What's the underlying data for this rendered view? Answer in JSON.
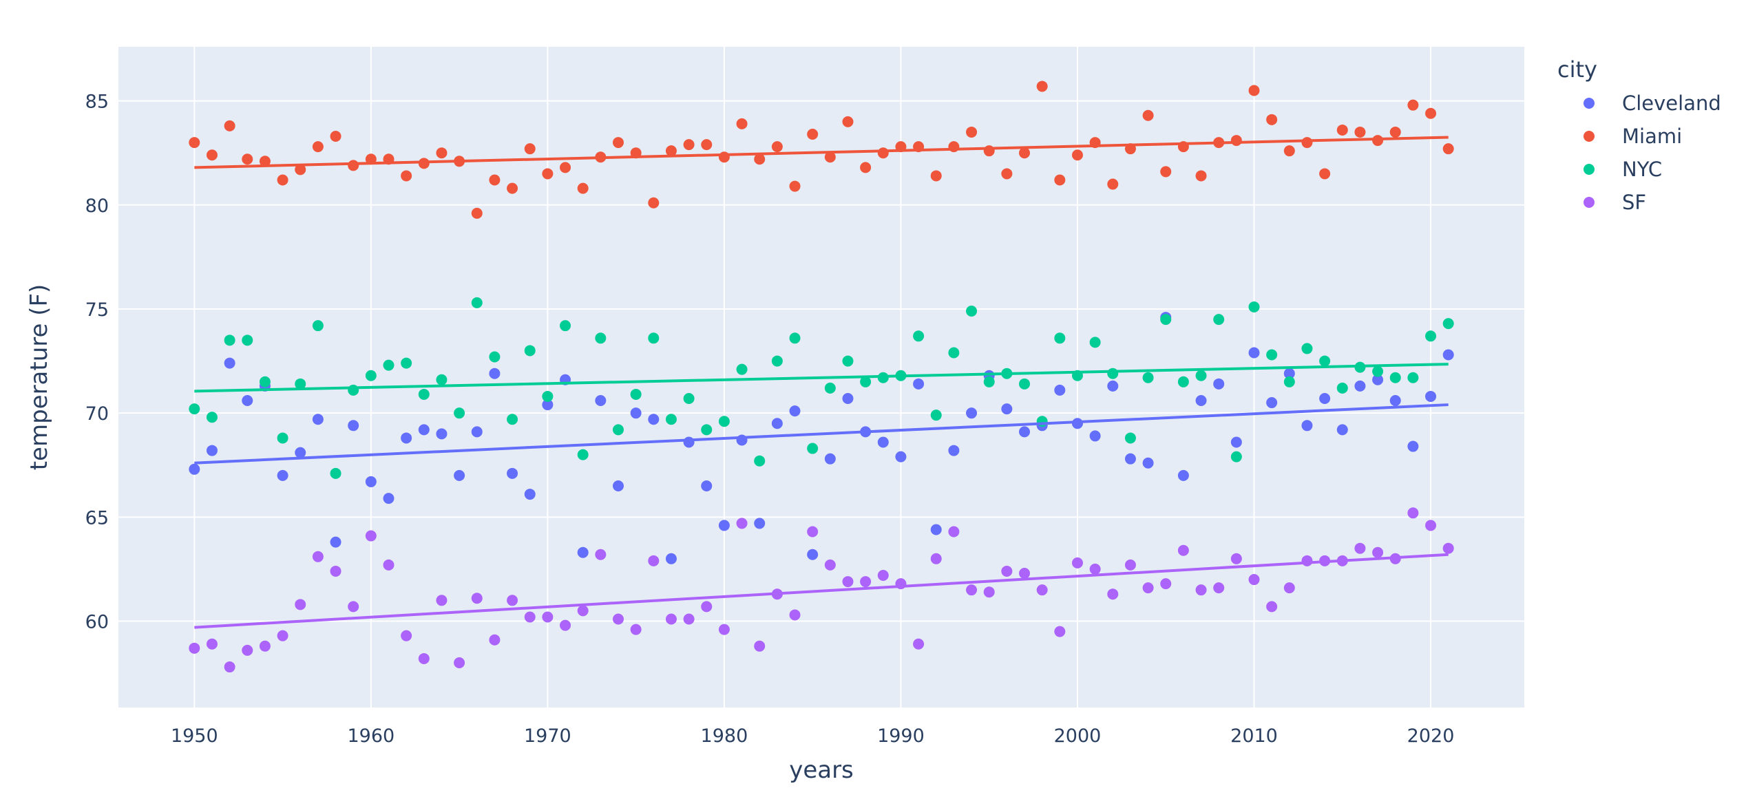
{
  "chart_data": {
    "type": "scatter",
    "xlabel": "years",
    "ylabel": "temperature (F)",
    "xlim": [
      1945.7,
      2025.3
    ],
    "ylim": [
      55.85,
      87.6
    ],
    "x_ticks": [
      1950,
      1960,
      1970,
      1980,
      1990,
      2000,
      2010,
      2020
    ],
    "y_ticks": [
      60,
      65,
      70,
      75,
      80,
      85
    ],
    "grid": true,
    "legend_title": "city",
    "legend_position": "top-right",
    "x": [
      1950,
      1951,
      1952,
      1953,
      1954,
      1955,
      1956,
      1957,
      1958,
      1959,
      1960,
      1961,
      1962,
      1963,
      1964,
      1965,
      1966,
      1967,
      1968,
      1969,
      1970,
      1971,
      1972,
      1973,
      1974,
      1975,
      1976,
      1977,
      1978,
      1979,
      1980,
      1981,
      1982,
      1983,
      1984,
      1985,
      1986,
      1987,
      1988,
      1989,
      1990,
      1991,
      1992,
      1993,
      1994,
      1995,
      1996,
      1997,
      1998,
      1999,
      2000,
      2001,
      2002,
      2003,
      2004,
      2005,
      2006,
      2007,
      2008,
      2009,
      2010,
      2011,
      2012,
      2013,
      2014,
      2015,
      2016,
      2017,
      2018,
      2019,
      2020,
      2021
    ],
    "series": [
      {
        "name": "Cleveland",
        "color": "#636efa",
        "values": [
          67.3,
          68.2,
          72.4,
          70.6,
          71.3,
          67.0,
          68.1,
          69.7,
          63.8,
          69.4,
          66.7,
          65.9,
          68.8,
          69.2,
          69.0,
          67.0,
          69.1,
          71.9,
          67.1,
          66.1,
          70.4,
          71.6,
          63.3,
          70.6,
          66.5,
          70.0,
          69.7,
          63.0,
          68.6,
          66.5,
          64.6,
          68.7,
          64.7,
          69.5,
          70.1,
          63.2,
          67.8,
          70.7,
          69.1,
          68.6,
          67.9,
          71.4,
          64.4,
          68.2,
          70.0,
          71.8,
          70.2,
          69.1,
          69.4,
          71.1,
          69.5,
          68.9,
          71.3,
          67.8,
          67.6,
          74.6,
          67.0,
          70.6,
          71.4,
          68.6,
          72.9,
          70.5,
          71.9,
          69.4,
          70.7,
          69.2,
          71.3,
          71.6,
          70.6,
          68.4,
          70.8,
          72.8
        ],
        "trend": [
          67.6,
          70.4
        ]
      },
      {
        "name": "Miami",
        "color": "#ef553b",
        "values": [
          83.0,
          82.4,
          83.8,
          82.2,
          82.1,
          81.2,
          81.7,
          82.8,
          83.3,
          81.9,
          82.2,
          82.2,
          81.4,
          82.0,
          82.5,
          82.1,
          79.6,
          81.2,
          80.8,
          82.7,
          81.5,
          81.8,
          80.8,
          82.3,
          83.0,
          82.5,
          80.1,
          82.6,
          82.9,
          82.9,
          82.3,
          83.9,
          82.2,
          82.8,
          80.9,
          83.4,
          82.3,
          84.0,
          81.8,
          82.5,
          82.8,
          82.8,
          81.4,
          82.8,
          83.5,
          82.6,
          81.5,
          82.5,
          85.7,
          81.2,
          82.4,
          83.0,
          81.0,
          82.7,
          84.3,
          81.6,
          82.8,
          81.4,
          83.0,
          83.1,
          85.5,
          84.1,
          82.6,
          83.0,
          81.5,
          83.6,
          83.5,
          83.1,
          83.5,
          84.8,
          84.4,
          82.7
        ],
        "trend": [
          81.8,
          83.25
        ]
      },
      {
        "name": "NYC",
        "color": "#00cc96",
        "values": [
          70.2,
          69.8,
          73.5,
          73.5,
          71.5,
          68.8,
          71.4,
          74.2,
          67.1,
          71.1,
          71.8,
          72.3,
          72.4,
          70.9,
          71.6,
          70.0,
          75.3,
          72.7,
          69.7,
          73.0,
          70.8,
          74.2,
          68.0,
          73.6,
          69.2,
          70.9,
          73.6,
          69.7,
          70.7,
          69.2,
          69.6,
          72.1,
          67.7,
          72.5,
          73.6,
          68.3,
          71.2,
          72.5,
          71.5,
          71.7,
          71.8,
          73.7,
          69.9,
          72.9,
          74.9,
          71.5,
          71.9,
          71.4,
          69.6,
          73.6,
          71.8,
          73.4,
          71.9,
          68.8,
          71.7,
          74.5,
          71.5,
          71.8,
          74.5,
          67.9,
          75.1,
          72.8,
          71.5,
          73.1,
          72.5,
          71.2,
          72.2,
          72.0,
          71.7,
          71.7,
          73.7,
          74.3
        ],
        "trend": [
          71.05,
          72.35
        ]
      },
      {
        "name": "SF",
        "color": "#ab63fa",
        "values": [
          58.7,
          58.9,
          57.8,
          58.6,
          58.8,
          59.3,
          60.8,
          63.1,
          62.4,
          60.7,
          64.1,
          62.7,
          59.3,
          58.2,
          61.0,
          58.0,
          61.1,
          59.1,
          61.0,
          60.2,
          60.2,
          59.8,
          60.5,
          63.2,
          60.1,
          59.6,
          62.9,
          60.1,
          60.1,
          60.7,
          59.6,
          64.7,
          58.8,
          61.3,
          60.3,
          64.3,
          62.7,
          61.9,
          61.9,
          62.2,
          61.8,
          58.9,
          63.0,
          64.3,
          61.5,
          61.4,
          62.4,
          62.3,
          61.5,
          59.5,
          62.8,
          62.5,
          61.3,
          62.7,
          61.6,
          61.8,
          63.4,
          61.5,
          61.6,
          63.0,
          62.0,
          60.7,
          61.6,
          62.9,
          62.9,
          62.9,
          63.5,
          63.3,
          63.0,
          65.2,
          64.6,
          63.5
        ],
        "trend": [
          59.7,
          63.2
        ]
      }
    ]
  }
}
